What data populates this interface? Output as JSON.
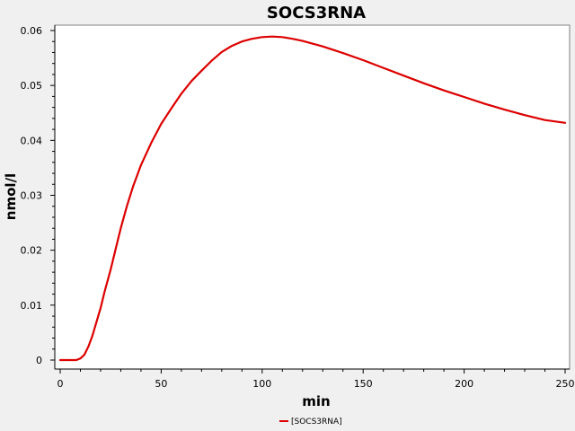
{
  "chart_data": {
    "type": "line",
    "title": "SOCS3RNA",
    "xlabel": "min",
    "ylabel": "nmol/l",
    "xlim": [
      0,
      250
    ],
    "ylim": [
      0,
      0.06
    ],
    "xticks": [
      "0",
      "50",
      "100",
      "150",
      "200",
      "250"
    ],
    "yticks": [
      "0",
      "0.01",
      "0.02",
      "0.03",
      "0.04",
      "0.05",
      "0.06"
    ],
    "grid": false,
    "legend_position": "bottom-center",
    "series": [
      {
        "name": "[SOCS3RNA]",
        "color": "#dd0000",
        "x": [
          0,
          5,
          8,
          10,
          12,
          14,
          16,
          18,
          20,
          22,
          25,
          28,
          30,
          33,
          36,
          40,
          45,
          50,
          55,
          60,
          65,
          70,
          75,
          80,
          85,
          90,
          95,
          100,
          105,
          110,
          115,
          120,
          130,
          140,
          150,
          160,
          170,
          180,
          190,
          200,
          210,
          220,
          230,
          240,
          250
        ],
        "y": [
          0,
          0,
          0,
          0.0003,
          0.001,
          0.0025,
          0.0045,
          0.007,
          0.0095,
          0.0125,
          0.0165,
          0.021,
          0.024,
          0.028,
          0.0315,
          0.0355,
          0.0395,
          0.043,
          0.0458,
          0.0485,
          0.0508,
          0.0527,
          0.0545,
          0.0561,
          0.0572,
          0.058,
          0.0585,
          0.0588,
          0.0589,
          0.0588,
          0.0585,
          0.0581,
          0.0571,
          0.0559,
          0.0546,
          0.0532,
          0.0518,
          0.0504,
          0.0491,
          0.0479,
          0.0467,
          0.0456,
          0.0446,
          0.0437,
          0.0432
        ]
      }
    ]
  }
}
